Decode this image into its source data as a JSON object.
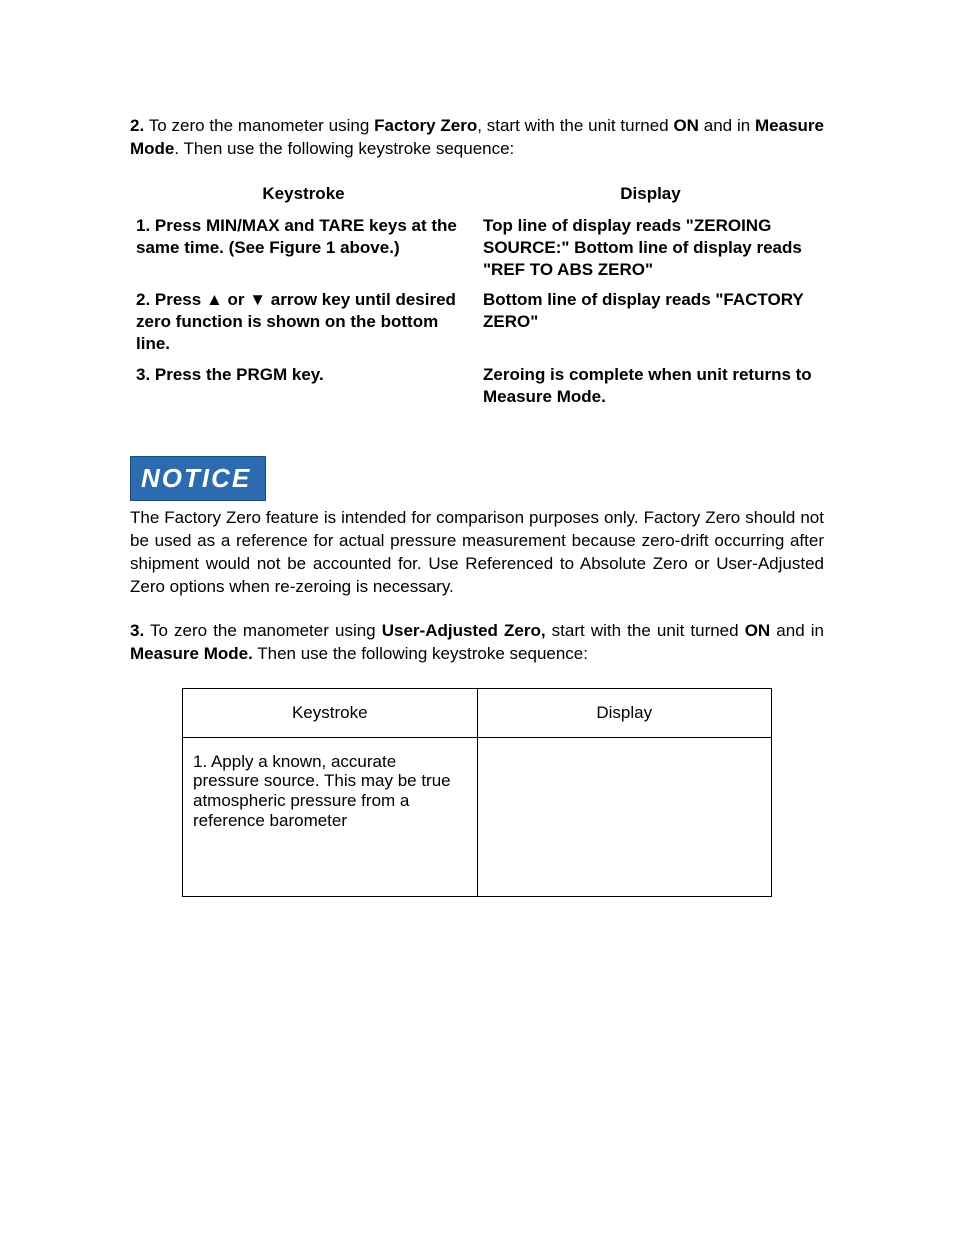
{
  "para2": {
    "num": "2.",
    "t1": " To zero the manometer using ",
    "b1": "Factory Zero",
    "t2": ", start with the unit turned ",
    "b2": "ON",
    "t3": " and in ",
    "b3": "Measure Mode",
    "t4": ". Then use the following keystroke sequence:"
  },
  "table1": {
    "h1": "Keystroke",
    "h2": "Display",
    "r1c1": "1. Press MIN/MAX and TARE keys at the same time.  (See Figure 1 above.)",
    "r1c2": "Top line of display reads \"ZEROING SOURCE:\" Bottom line of display reads \"REF TO ABS ZERO\"",
    "r2c1": "2. Press ▲ or ▼ arrow key until desired zero function is shown on the bottom line.",
    "r2c2": "Bottom line of display reads \"FACTORY ZERO\"",
    "r3c1": "3. Press the PRGM key.",
    "r3c2": "Zeroing is complete when unit returns to Measure Mode."
  },
  "notice": {
    "label": "NOTICE",
    "text": "The Factory Zero feature is intended for comparison purposes only. Factory Zero should not be used as a reference for actual pressure measurement because zero-drift occurring after shipment would not be accounted for. Use Referenced to Absolute Zero or User-Adjusted Zero options when re-zeroing is necessary."
  },
  "para3": {
    "num": "3.",
    "t1": " To zero the manometer using ",
    "b1": "User-Adjusted Zero,",
    "t2": " start with the unit turned ",
    "b2": "ON",
    "t3": " and in ",
    "b3": "Measure Mode.",
    "t4": " Then use the following keystroke sequence:"
  },
  "table2": {
    "h1": "Keystroke",
    "h2": "Display",
    "r1c1": "1. Apply a known, accurate pressure source. This may be true atmospheric pressure from a reference barometer",
    "r1c2": ""
  }
}
